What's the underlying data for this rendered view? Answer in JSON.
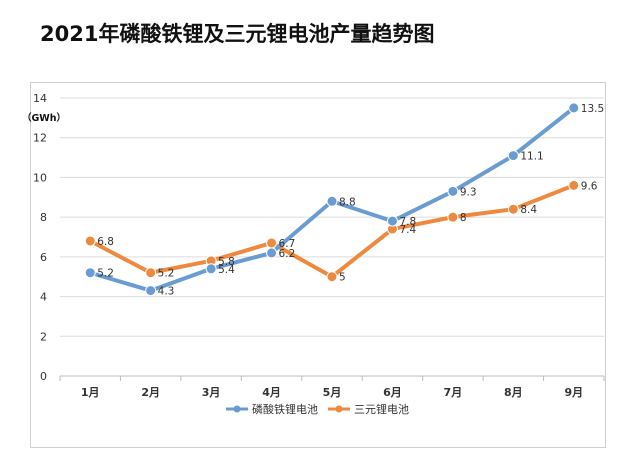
{
  "chart_data": {
    "type": "line",
    "title": "2021年磷酸铁锂及三元锂电池产量趋势图",
    "ylabel": "（GWh）",
    "xlabel": "",
    "categories": [
      "1月",
      "2月",
      "3月",
      "4月",
      "5月",
      "6月",
      "7月",
      "8月",
      "9月"
    ],
    "ylim": [
      0,
      14
    ],
    "yticks": [
      0,
      2,
      4,
      6,
      8,
      10,
      12,
      14
    ],
    "grid": true,
    "legend_position": "bottom",
    "series": [
      {
        "name": "磷酸铁锂电池",
        "color": "#6a9bd1",
        "values": [
          5.2,
          4.3,
          5.4,
          6.2,
          8.8,
          7.8,
          9.3,
          11.1,
          13.5
        ],
        "labels": [
          "5.2",
          "4.3",
          "5.4",
          "6.2",
          "8.8",
          "7.8",
          "9.3",
          "11.1",
          "13.5"
        ]
      },
      {
        "name": "三元锂电池",
        "color": "#ed8a3f",
        "values": [
          6.8,
          5.2,
          5.8,
          6.7,
          5,
          7.4,
          8,
          8.4,
          9.6
        ],
        "labels": [
          "6.8",
          "5.2",
          "5.8",
          "6.7",
          "5",
          "7.4",
          "8",
          "8.4",
          "9.6"
        ]
      }
    ]
  }
}
